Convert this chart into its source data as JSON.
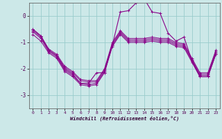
{
  "xlabel": "Windchill (Refroidissement éolien,°C)",
  "x_ticks": [
    0,
    1,
    2,
    3,
    4,
    5,
    6,
    7,
    8,
    9,
    10,
    11,
    12,
    13,
    14,
    15,
    16,
    17,
    18,
    19,
    20,
    21,
    22,
    23
  ],
  "ylim": [
    -3.5,
    0.5
  ],
  "yticks": [
    0,
    -1,
    -2,
    -3
  ],
  "background_color": "#cce8e8",
  "grid_color": "#99cccc",
  "line_color": "#880088",
  "series": {
    "line1": [
      -0.6,
      -0.85,
      -1.35,
      -1.55,
      -2.05,
      -2.25,
      -2.55,
      -2.6,
      -2.55,
      -2.1,
      -1.1,
      -0.65,
      -0.95,
      -0.95,
      -0.95,
      -0.9,
      -0.95,
      -0.95,
      -1.1,
      -1.15,
      -1.7,
      -2.25,
      -2.25,
      -1.4
    ],
    "line2": [
      -0.55,
      -0.8,
      -1.3,
      -1.5,
      -1.95,
      -2.15,
      -2.45,
      -2.5,
      -2.5,
      -2.05,
      -1.05,
      -0.6,
      -0.9,
      -0.9,
      -0.9,
      -0.85,
      -0.9,
      -0.9,
      -1.05,
      -1.1,
      -1.65,
      -2.2,
      -2.2,
      -1.35
    ],
    "line3": [
      -0.5,
      -0.75,
      -1.25,
      -1.45,
      -1.9,
      -2.1,
      -2.4,
      -2.45,
      -2.45,
      -2.0,
      -1.0,
      -0.55,
      -0.85,
      -0.85,
      -0.85,
      -0.8,
      -0.85,
      -0.85,
      -1.0,
      -1.05,
      -1.6,
      -2.15,
      -2.15,
      -1.3
    ],
    "line4": [
      -0.7,
      -0.95,
      -1.4,
      -1.6,
      -2.1,
      -2.3,
      -2.6,
      -2.65,
      -2.6,
      -2.15,
      -1.15,
      -0.7,
      -1.0,
      -1.0,
      -1.0,
      -0.95,
      -1.0,
      -1.0,
      -1.15,
      -1.2,
      -1.75,
      -2.3,
      -2.3,
      -1.45
    ],
    "main": [
      -0.5,
      -0.75,
      -1.3,
      -1.5,
      -2.0,
      -2.2,
      -2.55,
      -2.55,
      -2.15,
      -2.15,
      -1.1,
      0.15,
      0.2,
      0.5,
      0.65,
      0.15,
      0.1,
      -0.65,
      -0.95,
      -0.8,
      -1.7,
      -2.3,
      -2.3,
      -1.45
    ]
  }
}
